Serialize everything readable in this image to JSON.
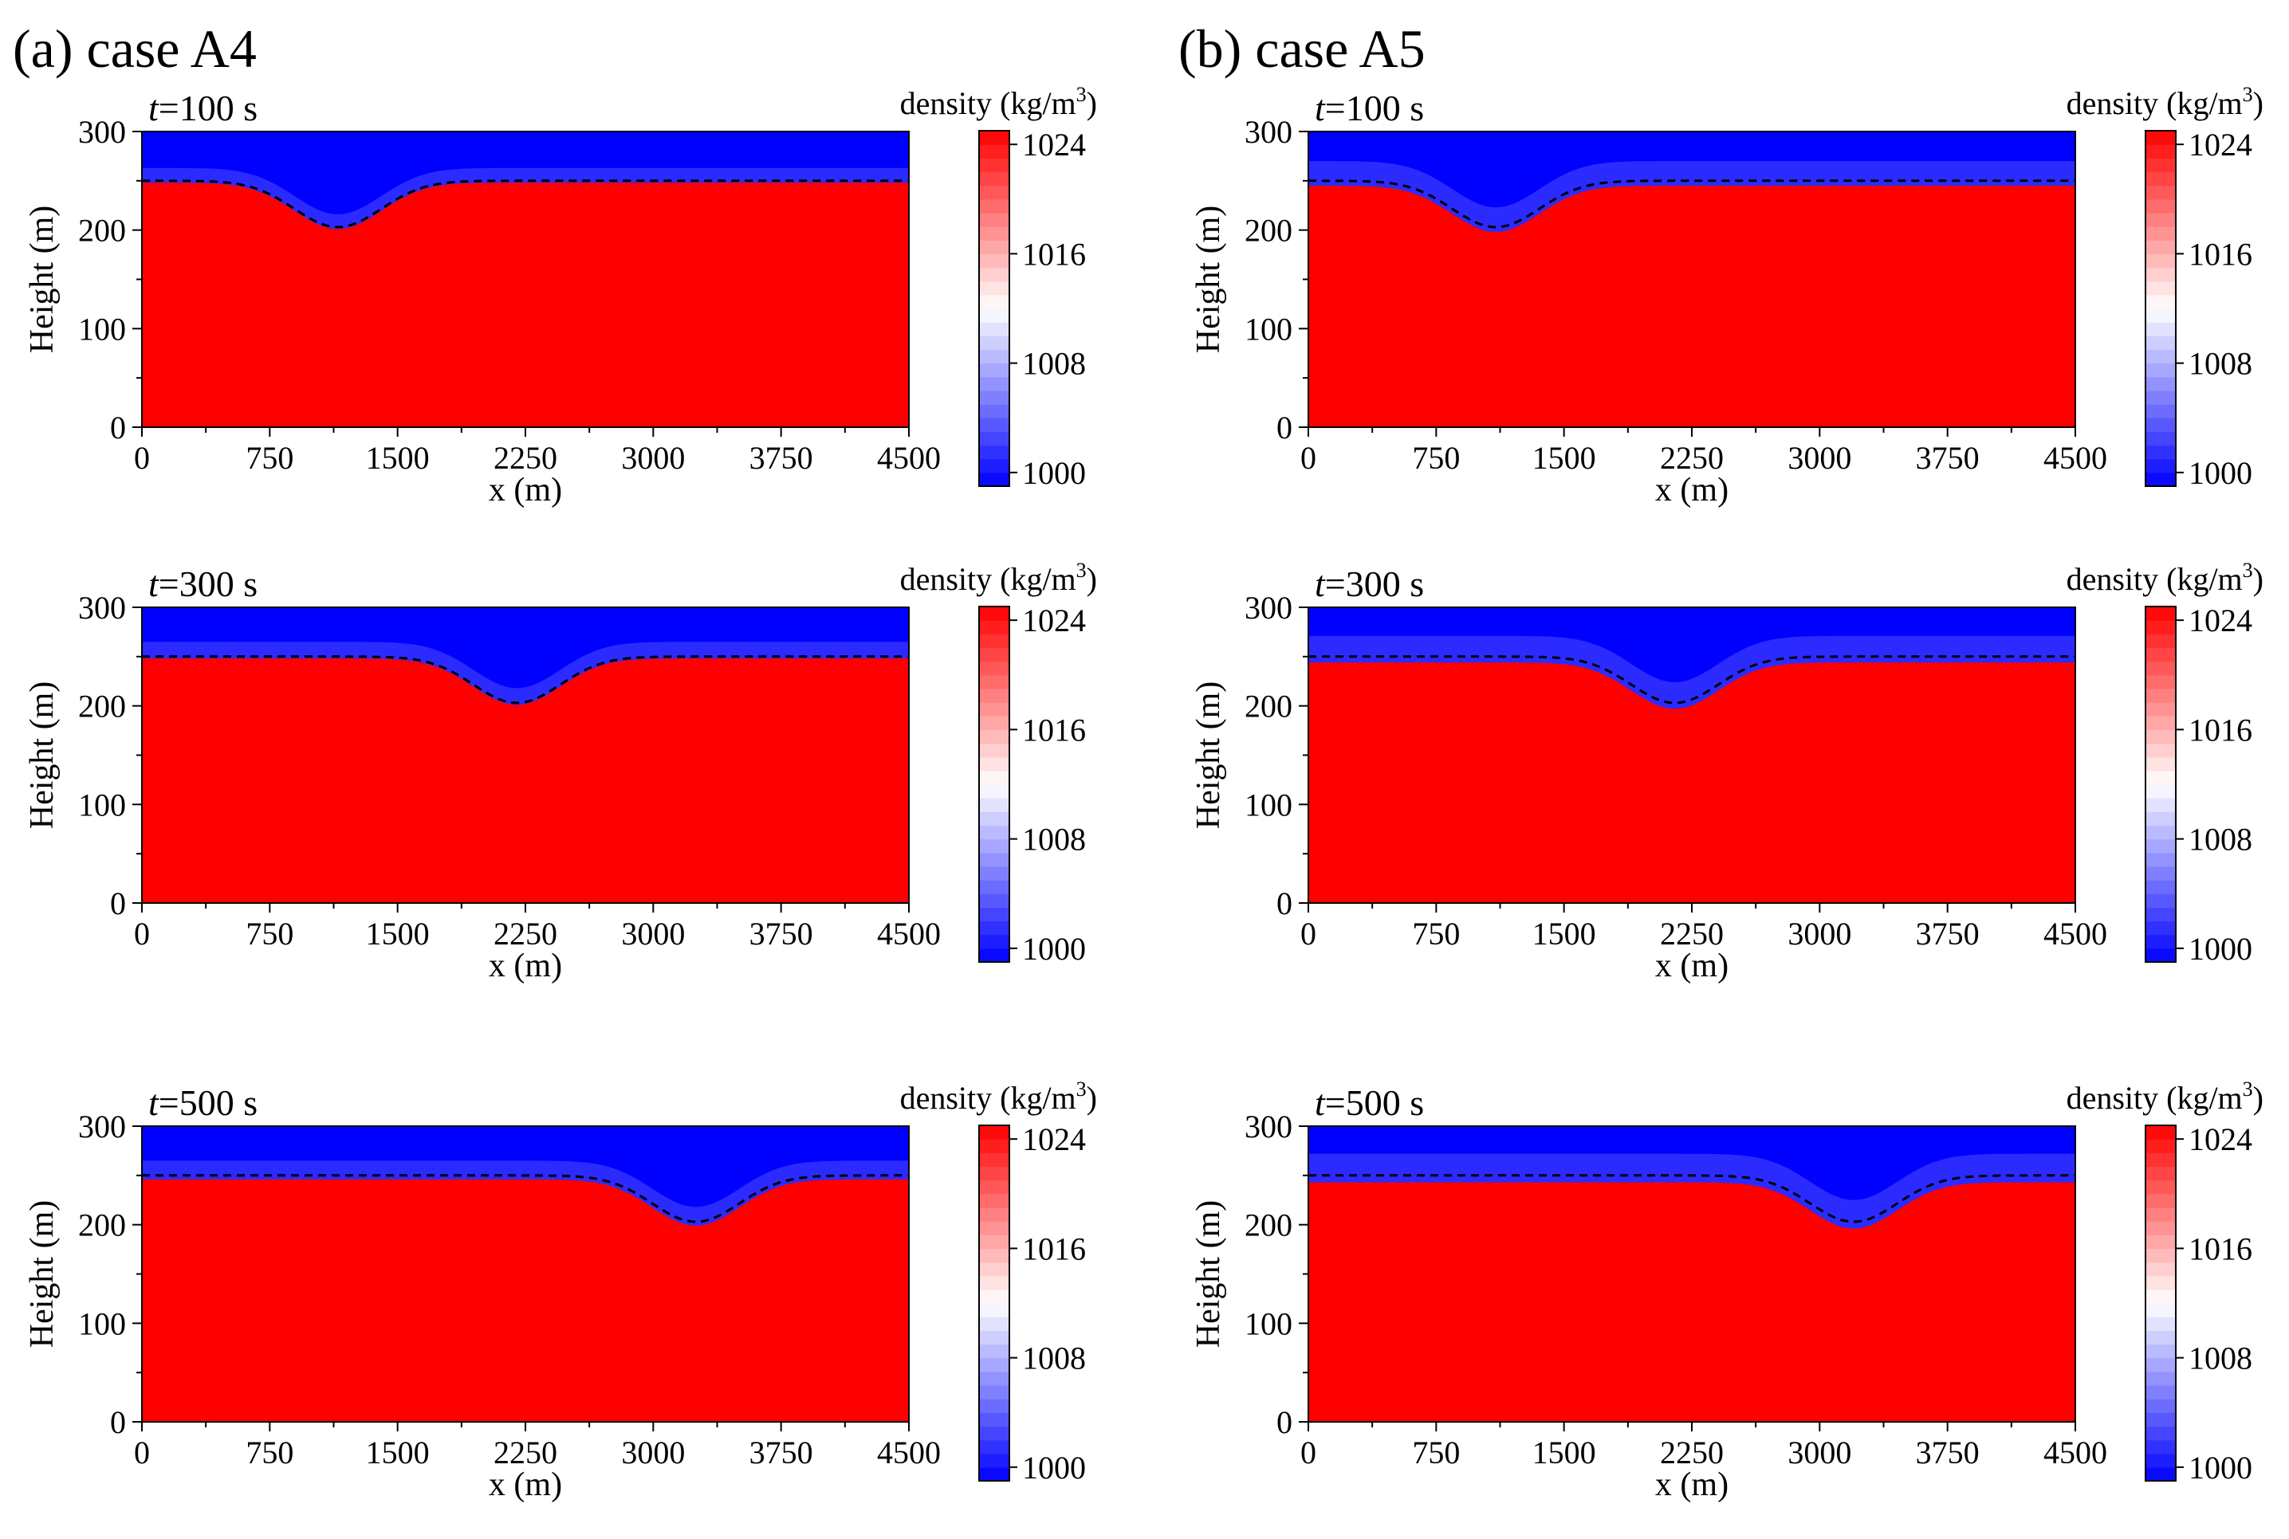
{
  "chart_data": {
    "type": "heatmap",
    "columns": [
      {
        "label": "(a) case A4",
        "panels": [
          {
            "time_label": "t=100 s",
            "time_var": "t",
            "time_rest": "=100 s",
            "trough_center_x": 1150,
            "fringe_center_y": 255,
            "fringe_halfwidth": 7,
            "xlabel_main": "x",
            "xlabel_rest": " (m)"
          },
          {
            "time_label": "t=300 s",
            "time_var": "t",
            "time_rest": "=300 s",
            "trough_center_x": 2200,
            "fringe_center_y": 256,
            "fringe_halfwidth": 8,
            "xlabel_main": "x",
            "xlabel_rest": " (m)"
          },
          {
            "time_label": "t=500 s",
            "time_var": "t",
            "time_rest": "=500 s",
            "trough_center_x": 3250,
            "fringe_center_y": 255,
            "fringe_halfwidth": 9,
            "xlabel_main": "x",
            "xlabel_rest": " (m)"
          }
        ]
      },
      {
        "label": "(b) case A5",
        "panels": [
          {
            "time_label": "t=100 s",
            "time_var": "t",
            "time_rest": "=100 s",
            "trough_center_x": 1100,
            "fringe_center_y": 257,
            "fringe_halfwidth": 12,
            "xlabel_main": "x",
            "xlabel_rest": " (m)"
          },
          {
            "time_label": "t=300 s",
            "time_var": "t",
            "time_rest": "=300 s",
            "trough_center_x": 2150,
            "fringe_center_y": 257,
            "fringe_halfwidth": 13,
            "xlabel_main": "x",
            "xlabel_rest": " (m)"
          },
          {
            "time_label": "t=500 s",
            "time_var": "t",
            "time_rest": "=500 s",
            "trough_center_x": 3200,
            "fringe_center_y": 257,
            "fringe_halfwidth": 14,
            "xlabel_main": "x",
            "xlabel_rest": " (m)"
          }
        ]
      }
    ],
    "interface_height": 250,
    "trough_depth": 47,
    "trough_width": 360,
    "xlim": [
      0,
      4500
    ],
    "ylim": [
      0,
      300
    ],
    "x_ticks": [
      0,
      750,
      1500,
      2250,
      3000,
      3750,
      4500
    ],
    "y_ticks": [
      0,
      100,
      200,
      300
    ],
    "xlabel": "x (m)",
    "ylabel": "Height (m)",
    "colorbar": {
      "label": "density (kg/m³)",
      "label_text": "density (kg/m",
      "label_sup": "3",
      "label_close": ")",
      "range": [
        999,
        1025
      ],
      "ticks": [
        1000,
        1008,
        1016,
        1024
      ],
      "levels": 26
    },
    "colors": {
      "low": "#0000ff",
      "mid": "#ffffff",
      "high": "#ff0000",
      "interface_line": "#000000"
    }
  }
}
